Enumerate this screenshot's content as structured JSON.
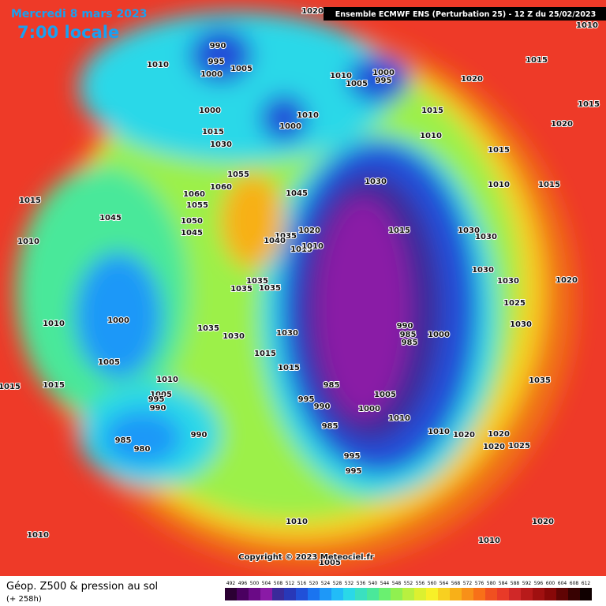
{
  "header": {
    "date": "Mercredi 8 mars 2023",
    "time": "7:00 locale",
    "run": "Ensemble ECMWF ENS  (Perturbation 25)  - 12 Z du 25/02/2023"
  },
  "footer": {
    "copyright": "Copyright © 2023 Meteociel.fr",
    "field": "Géop. Z500 & pression au sol",
    "lead": "(+ 258h)"
  },
  "scale": {
    "labels": [
      492,
      496,
      500,
      504,
      508,
      512,
      516,
      520,
      524,
      528,
      532,
      536,
      540,
      544,
      548,
      552,
      556,
      560,
      564,
      568,
      572,
      576,
      580,
      584,
      588,
      592,
      596,
      600,
      604,
      608,
      612
    ],
    "colors": [
      "#2b0033",
      "#4a0060",
      "#6a0a86",
      "#8a1aa6",
      "#3a2a9a",
      "#2838b8",
      "#2050d8",
      "#1a74f0",
      "#1e98f8",
      "#22bcf8",
      "#2ad8e8",
      "#3ae0c0",
      "#4ae89a",
      "#6af070",
      "#90f050",
      "#b8f040",
      "#dcf030",
      "#f8f028",
      "#f8d020",
      "#f8b018",
      "#f89018",
      "#f87018",
      "#f05020",
      "#e83a28",
      "#d02828",
      "#b81a1a",
      "#a01010",
      "#880808",
      "#600404",
      "#380202",
      "#100000"
    ]
  },
  "pressure_labels": [
    1020,
    990,
    995,
    1000,
    1010,
    1005,
    1010,
    1005,
    1000,
    995,
    1020,
    1015,
    1015,
    1020,
    1015,
    1010,
    1015,
    1010,
    1015,
    1000,
    1010,
    1000,
    1015,
    1030,
    1055,
    1060,
    1060,
    1055,
    1050,
    1045,
    1045,
    1015,
    1010,
    1010,
    1000,
    1005,
    1015,
    1015,
    1010,
    1005,
    995,
    990,
    985,
    980,
    990,
    1045,
    1030,
    1035,
    1040,
    1020,
    1015,
    1010,
    1015,
    1030,
    1030,
    1030,
    1035,
    1035,
    1035,
    1035,
    1030,
    1030,
    1015,
    1015,
    990,
    985,
    985,
    1000,
    985,
    995,
    990,
    1005,
    1000,
    1010,
    985,
    1010,
    1020,
    1020,
    1025,
    1020,
    995,
    995,
    1010,
    1010,
    1010,
    1020,
    1035,
    1030,
    1025,
    1030,
    1020,
    1005,
    1010
  ]
}
